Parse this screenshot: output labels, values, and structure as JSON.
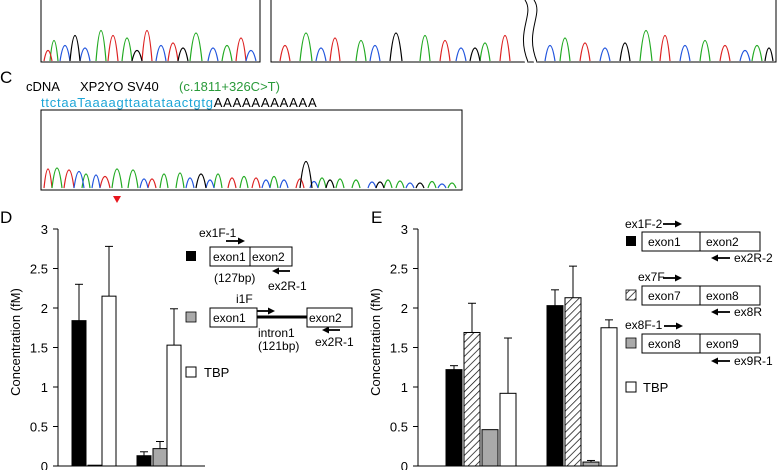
{
  "panel_c": {
    "letter": "C",
    "cdna_label": "cDNA",
    "construct": "XP2YO SV40",
    "mutation": "(c.1811+326C>T)",
    "seq_a": "ttctaa",
    "seq_b": "T",
    "seq_c": "aaaagttaatataactgtg",
    "seq_d": "AAAAAAAAAAA"
  },
  "panel_d": {
    "letter": "D",
    "diagram": {
      "ex1f1": "ex1F-1",
      "exon1_top": "exon1",
      "exon2_top": "exon2",
      "size1": "(127bp)",
      "ex2r1_top": "ex2R-1",
      "i1f": "i1F",
      "exon1_bot": "exon1",
      "exon2_bot": "exon2",
      "intron1": "intron1",
      "size2": "(121bp)",
      "ex2r1_bot": "ex2R-1",
      "tbp": "TBP"
    }
  },
  "panel_e": {
    "letter": "E",
    "diagram": {
      "ex1f2": "ex1F-2",
      "exon1": "exon1",
      "exon2": "exon2",
      "ex2r2": "ex2R-2",
      "ex7f": "ex7F",
      "exon7": "exon7",
      "exon8a": "exon8",
      "ex8r": "ex8R",
      "ex8f1": "ex8F-1",
      "exon8b": "exon8",
      "exon9": "exon9",
      "ex9r1": "ex9R-1",
      "tbp": "TBP"
    }
  },
  "chart_data": [
    {
      "type": "bar",
      "ylabel": "Concentration (fM)",
      "yticks": [
        "0",
        "0.5",
        "1",
        "1.5",
        "2",
        "2.5",
        "3"
      ],
      "ylim": [
        0,
        3
      ],
      "groups": 2,
      "series": [
        {
          "values": [
            1.84,
            0.13
          ],
          "errors": [
            0.46,
            0.05
          ],
          "fill": "black"
        },
        {
          "values": [
            0.01,
            0.22
          ],
          "errors": [
            0.0,
            0.09
          ],
          "fill": "gray"
        },
        {
          "values": [
            2.15,
            1.53
          ],
          "errors": [
            0.63,
            0.46
          ],
          "fill": "white"
        }
      ]
    },
    {
      "type": "bar",
      "ylabel": "Concentration (fM)",
      "yticks": [
        "0",
        "0.5",
        "1",
        "1.5",
        "2",
        "2.5",
        "3"
      ],
      "ylim": [
        0,
        3
      ],
      "groups": 2,
      "series": [
        {
          "values": [
            1.22,
            2.03
          ],
          "errors": [
            0.05,
            0.2
          ],
          "fill": "black"
        },
        {
          "values": [
            1.69,
            2.13
          ],
          "errors": [
            0.37,
            0.4
          ],
          "fill": "hatch"
        },
        {
          "values": [
            0.46,
            0.05
          ],
          "errors": [
            0.0,
            0.02
          ],
          "fill": "gray"
        },
        {
          "values": [
            0.92,
            1.75
          ],
          "errors": [
            0.7,
            0.1
          ],
          "fill": "white"
        }
      ]
    }
  ]
}
